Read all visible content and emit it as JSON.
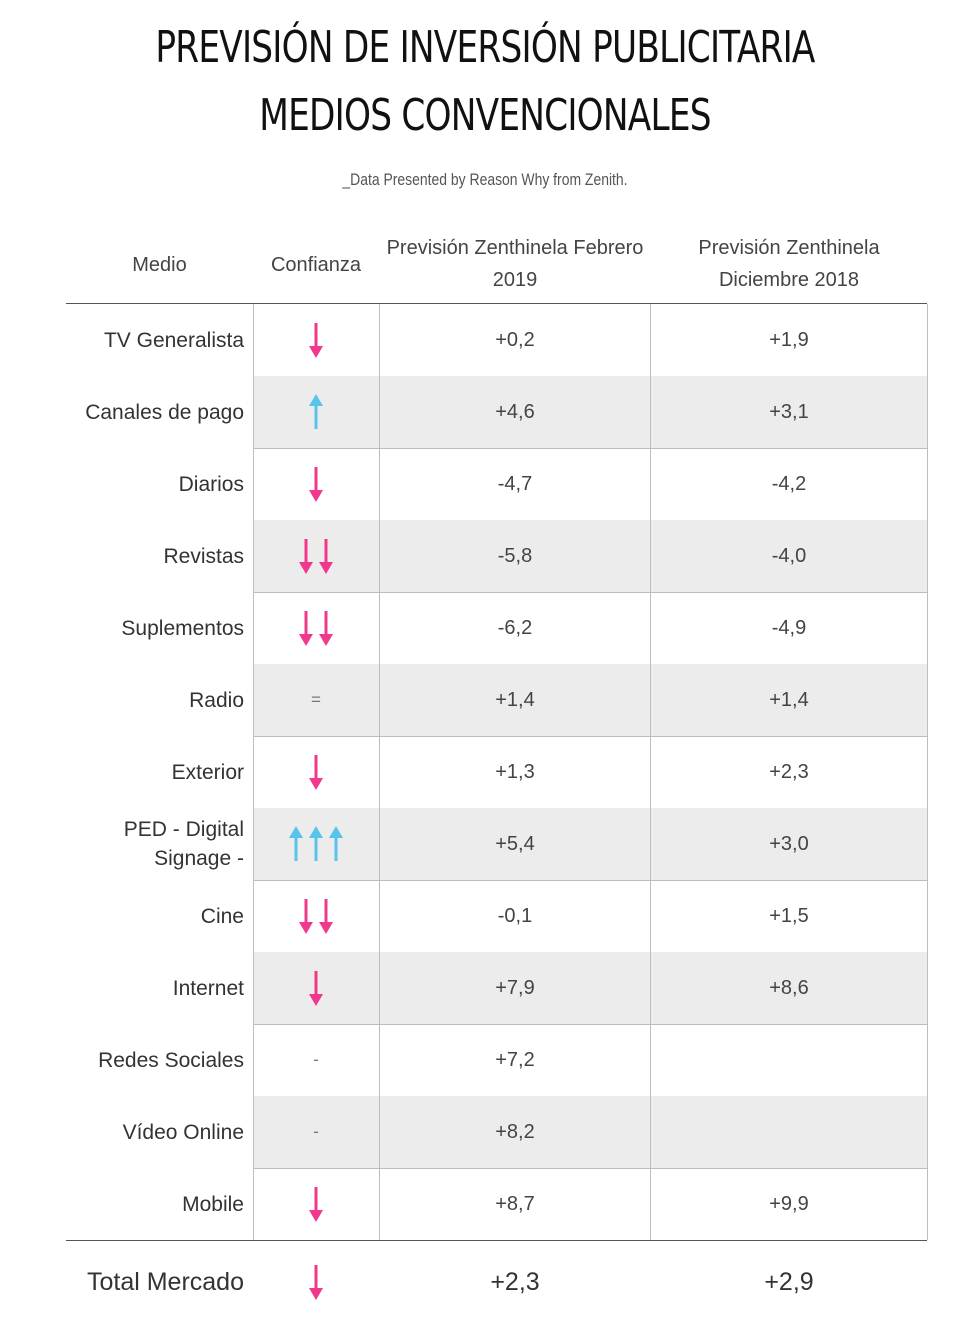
{
  "title_line1": "PREVISIÓN DE INVERSIÓN PUBLICITARIA",
  "title_line2": "MEDIOS CONVENCIONALES",
  "source": "_Data Presented by Reason Why from Zenith.",
  "colors": {
    "down": "#f0388c",
    "up": "#58c4ee",
    "shade": "#ececec"
  },
  "chart_data": {
    "type": "table",
    "headers": [
      "Medio",
      "Confianza",
      "Previsión Zenthinela Febrero 2019",
      "Previsión Zenthinela Diciembre 2018"
    ],
    "rows": [
      {
        "medio": "TV Generalista",
        "confianza": {
          "symbol": "down-arrow",
          "count": 1
        },
        "feb": "+0,2",
        "dic": "+1,9"
      },
      {
        "medio": "Canales de pago",
        "confianza": {
          "symbol": "up-arrow",
          "count": 1
        },
        "feb": "+4,6",
        "dic": "+3,1"
      },
      {
        "medio": "Diarios",
        "confianza": {
          "symbol": "down-arrow",
          "count": 1
        },
        "feb": "-4,7",
        "dic": "-4,2"
      },
      {
        "medio": "Revistas",
        "confianza": {
          "symbol": "down-arrow",
          "count": 2
        },
        "feb": "-5,8",
        "dic": "-4,0"
      },
      {
        "medio": "Suplementos",
        "confianza": {
          "symbol": "down-arrow",
          "count": 2
        },
        "feb": "-6,2",
        "dic": "-4,9"
      },
      {
        "medio": "Radio",
        "confianza": {
          "text": "="
        },
        "feb": "+1,4",
        "dic": "+1,4"
      },
      {
        "medio": "Exterior",
        "confianza": {
          "symbol": "down-arrow",
          "count": 1
        },
        "feb": "+1,3",
        "dic": "+2,3"
      },
      {
        "medio": "PED - Digital Signage -",
        "confianza": {
          "symbol": "up-arrow",
          "count": 3
        },
        "feb": "+5,4",
        "dic": "+3,0"
      },
      {
        "medio": "Cine",
        "confianza": {
          "symbol": "down-arrow",
          "count": 2
        },
        "feb": "-0,1",
        "dic": "+1,5"
      },
      {
        "medio": "Internet",
        "confianza": {
          "symbol": "down-arrow",
          "count": 1
        },
        "feb": "+7,9",
        "dic": "+8,6"
      },
      {
        "medio": "Redes Sociales",
        "confianza": {
          "text": "-"
        },
        "feb": "+7,2",
        "dic": ""
      },
      {
        "medio": "Vídeo Online",
        "confianza": {
          "text": "-"
        },
        "feb": "+8,2",
        "dic": ""
      },
      {
        "medio": "Mobile",
        "confianza": {
          "symbol": "down-arrow",
          "count": 1
        },
        "feb": "+8,7",
        "dic": "+9,9"
      }
    ],
    "total": {
      "medio": "Total Mercado",
      "confianza": {
        "symbol": "down-arrow",
        "count": 1
      },
      "feb": "+2,3",
      "dic": "+2,9"
    }
  }
}
